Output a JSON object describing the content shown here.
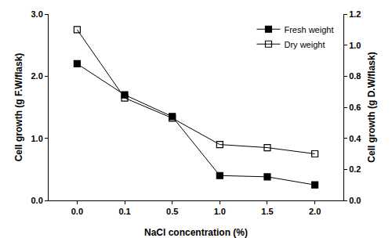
{
  "chart_data": {
    "type": "line",
    "x_label": "NaCl concentration (%)",
    "y_label": "Cell growth (g F.W/flask)",
    "y2_label": "Cell growth (g D.W/flask)",
    "categories": [
      "0.0",
      "0.1",
      "0.5",
      "1.0",
      "1.5",
      "2.0"
    ],
    "series": [
      {
        "name": "Fresh weight",
        "color": "#000000",
        "marker": "square",
        "values": [
          2.2,
          1.7,
          1.35,
          0.4,
          0.38,
          0.25
        ]
      },
      {
        "name": "Dry weight",
        "color": "#000000",
        "marker": "square-open",
        "axis": "y2",
        "values": [
          1.1,
          0.66,
          0.53,
          0.36,
          0.34,
          0.3
        ]
      }
    ],
    "ylim": [
      0,
      3
    ],
    "yticks": [
      {
        "value": 0,
        "label": "0.0"
      },
      {
        "value": 1,
        "label": "1.0"
      },
      {
        "value": 2,
        "label": "2.0"
      },
      {
        "value": 3,
        "label": "3.0"
      }
    ],
    "y2lim": [
      0,
      1.2
    ],
    "y2ticks": [
      {
        "value": 0,
        "label": "0.0"
      },
      {
        "value": 0.2,
        "label": "0.2"
      },
      {
        "value": 0.4,
        "label": "0.4"
      },
      {
        "value": 0.6,
        "label": "0.6"
      },
      {
        "value": 0.8,
        "label": "0.8"
      },
      {
        "value": 1,
        "label": "1.0"
      },
      {
        "value": 1.2,
        "label": "1.2"
      }
    ],
    "grid": false,
    "legend": "upper right"
  }
}
